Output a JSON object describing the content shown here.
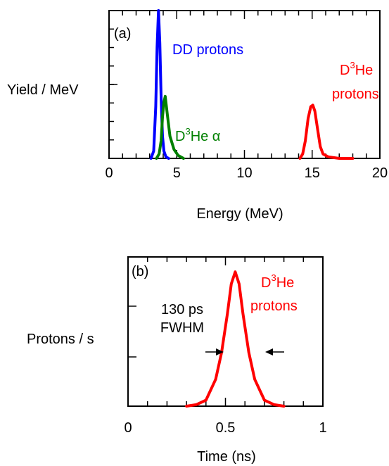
{
  "chart_data": [
    {
      "type": "line",
      "panel_label": "(a)",
      "xlabel": "Energy (MeV)",
      "ylabel": "Yield / MeV",
      "xlim": [
        0,
        20
      ],
      "ylim": [
        0,
        1
      ],
      "x_ticks": [
        0,
        5,
        10,
        15,
        20
      ],
      "grid": false,
      "series": [
        {
          "color": "#0000ff",
          "x": [
            3.1,
            3.3,
            3.45,
            3.55,
            3.65,
            3.75,
            3.85,
            3.95,
            4.05,
            4.2,
            4.4
          ],
          "y": [
            0.0,
            0.05,
            0.35,
            0.75,
            1.0,
            0.78,
            0.4,
            0.15,
            0.05,
            0.01,
            0.0
          ]
        },
        {
          "color": "#008000",
          "x": [
            3.5,
            3.7,
            3.85,
            3.95,
            4.05,
            4.15,
            4.3,
            4.5,
            4.8,
            5.1,
            5.5
          ],
          "y": [
            0.0,
            0.03,
            0.12,
            0.28,
            0.38,
            0.42,
            0.3,
            0.15,
            0.06,
            0.02,
            0.0
          ]
        },
        {
          "color": "#ff0000",
          "x": [
            14.1,
            14.3,
            14.5,
            14.7,
            14.9,
            15.05,
            15.2,
            15.4,
            15.6,
            15.8,
            16.2,
            17.0,
            18.0
          ],
          "y": [
            0.0,
            0.03,
            0.12,
            0.27,
            0.35,
            0.36,
            0.32,
            0.2,
            0.08,
            0.03,
            0.01,
            0.0,
            0.0
          ]
        }
      ],
      "annotations": {
        "dd": "DD protons",
        "alpha_pre": "D",
        "alpha_sup": "3",
        "alpha_post": "He α",
        "d3he_pre": "D",
        "d3he_sup": "3",
        "d3he_post": "He",
        "d3he_line2": "protons"
      }
    },
    {
      "type": "line",
      "panel_label": "(b)",
      "xlabel": "Time (ns)",
      "ylabel": "Protons / s",
      "xlim": [
        0,
        1
      ],
      "ylim": [
        0,
        1
      ],
      "x_ticks": [
        0,
        0.5,
        1
      ],
      "grid": false,
      "series": [
        {
          "color": "#ff0000",
          "x": [
            0.3,
            0.35,
            0.4,
            0.45,
            0.48,
            0.51,
            0.53,
            0.55,
            0.57,
            0.59,
            0.62,
            0.65,
            0.7,
            0.75,
            0.8
          ],
          "y": [
            0.0,
            0.01,
            0.04,
            0.18,
            0.36,
            0.62,
            0.82,
            0.9,
            0.82,
            0.62,
            0.36,
            0.18,
            0.04,
            0.01,
            0.0
          ]
        }
      ],
      "annotations": {
        "fwhm_line1": "130 ps",
        "fwhm_line2": "FWHM",
        "d3he_pre": "D",
        "d3he_sup": "3",
        "d3he_post": "He",
        "d3he_line2": "protons"
      }
    }
  ]
}
